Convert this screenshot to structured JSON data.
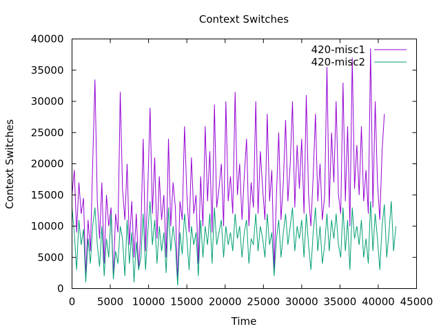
{
  "chart_data": {
    "type": "line",
    "title": "Context Switches",
    "xlabel": "Time",
    "ylabel": "Context Switches",
    "xlim": [
      0,
      45000
    ],
    "ylim": [
      0,
      40000
    ],
    "x_ticks": [
      "0",
      "5000",
      "10000",
      "15000",
      "20000",
      "25000",
      "30000",
      "35000",
      "40000",
      "45000"
    ],
    "y_ticks": [
      "0",
      "5000",
      "10000",
      "15000",
      "20000",
      "25000",
      "30000",
      "35000",
      "40000"
    ],
    "grid": false,
    "legend_position": "top-right",
    "series": [
      {
        "name": "420-misc1",
        "color": "#9400d3",
        "x": [
          0,
          300,
          600,
          900,
          1200,
          1500,
          1800,
          2100,
          2400,
          2700,
          3000,
          3300,
          3600,
          3900,
          4200,
          4500,
          4800,
          5100,
          5400,
          5700,
          6000,
          6300,
          6600,
          6900,
          7200,
          7500,
          7800,
          8100,
          8400,
          8700,
          9000,
          9300,
          9600,
          9900,
          10200,
          10500,
          10800,
          11100,
          11400,
          11700,
          12000,
          12300,
          12600,
          12900,
          13200,
          13500,
          13800,
          14100,
          14400,
          14700,
          15000,
          15300,
          15600,
          15900,
          16200,
          16500,
          16800,
          17100,
          17400,
          17700,
          18000,
          18300,
          18600,
          18900,
          19200,
          19500,
          19800,
          20100,
          20400,
          20700,
          21000,
          21300,
          21600,
          21900,
          22200,
          22500,
          22800,
          23100,
          23400,
          23700,
          24000,
          24300,
          24600,
          24900,
          25200,
          25500,
          25800,
          26100,
          26400,
          26700,
          27000,
          27300,
          27600,
          27900,
          28200,
          28500,
          28800,
          29100,
          29400,
          29700,
          30000,
          30300,
          30600,
          30900,
          31200,
          31500,
          31800,
          32100,
          32400,
          32700,
          33000,
          33300,
          33600,
          33900,
          34200,
          34500,
          34800,
          35100,
          35400,
          35700,
          36000,
          36300,
          36600,
          36900,
          37200,
          37500,
          37800,
          38100,
          38400,
          38700,
          39000,
          39300,
          39600,
          39900,
          40200,
          40500,
          40800
        ],
        "y": [
          15000,
          19000,
          9000,
          17000,
          12000,
          14500,
          2000,
          11000,
          6000,
          20000,
          33500,
          14000,
          8000,
          17000,
          4000,
          15000,
          10000,
          13000,
          2000,
          12000,
          9000,
          31500,
          16000,
          11000,
          20000,
          7000,
          14000,
          5000,
          12000,
          3000,
          9500,
          24000,
          6000,
          16000,
          29000,
          12000,
          21000,
          8000,
          18000,
          11000,
          15000,
          5000,
          24000,
          10000,
          17000,
          13000,
          1000,
          14000,
          11000,
          26000,
          15000,
          9000,
          21000,
          12000,
          15000,
          4000,
          18000,
          10000,
          26000,
          14000,
          22000,
          9000,
          29500,
          13000,
          16000,
          20000,
          10000,
          30000,
          14000,
          18000,
          12000,
          31500,
          15000,
          20000,
          11000,
          18000,
          24000,
          10000,
          17000,
          13000,
          30000,
          12000,
          22000,
          16000,
          11000,
          28000,
          14000,
          19000,
          3000,
          15000,
          25000,
          11000,
          17000,
          27000,
          14000,
          20000,
          30000,
          13000,
          23000,
          16000,
          24000,
          12000,
          31000,
          15000,
          10000,
          18000,
          28000,
          14000,
          20000,
          11000,
          15000,
          35500,
          13000,
          25000,
          17000,
          30000,
          15000,
          12000,
          33000,
          14000,
          26000,
          10000,
          37000,
          16000,
          23000,
          15000,
          26000,
          14000,
          19000,
          12000,
          38500,
          13000,
          30000,
          17000,
          11000,
          22000,
          28000
        ]
      },
      {
        "name": "420-misc2",
        "color": "#009e73",
        "x": [
          0,
          300,
          600,
          900,
          1200,
          1500,
          1800,
          2100,
          2400,
          2700,
          3000,
          3300,
          3600,
          3900,
          4200,
          4500,
          4800,
          5100,
          5400,
          5700,
          6000,
          6300,
          6600,
          6900,
          7200,
          7500,
          7800,
          8100,
          8400,
          8700,
          9000,
          9300,
          9600,
          9900,
          10200,
          10500,
          10800,
          11100,
          11400,
          11700,
          12000,
          12300,
          12600,
          12900,
          13200,
          13500,
          13800,
          14100,
          14400,
          14700,
          15000,
          15300,
          15600,
          15900,
          16200,
          16500,
          16800,
          17100,
          17400,
          17700,
          18000,
          18300,
          18600,
          18900,
          19200,
          19500,
          19800,
          20100,
          20400,
          20700,
          21000,
          21300,
          21600,
          21900,
          22200,
          22500,
          22800,
          23100,
          23400,
          23700,
          24000,
          24300,
          24600,
          24900,
          25200,
          25500,
          25800,
          26100,
          26400,
          26700,
          27000,
          27300,
          27600,
          27900,
          28200,
          28500,
          28800,
          29100,
          29400,
          29700,
          30000,
          30300,
          30600,
          30900,
          31200,
          31500,
          31800,
          32100,
          32400,
          32700,
          33000,
          33300,
          33600,
          33900,
          34200,
          34500,
          34800,
          35100,
          35400,
          35700,
          36000,
          36300,
          36600,
          36900,
          37200,
          37500,
          37800,
          38100,
          38400,
          38700,
          39000,
          39300,
          39600,
          39900,
          40200,
          40500,
          40800,
          41100,
          41400,
          41700,
          42000,
          42300
        ],
        "y": [
          13000,
          9000,
          3000,
          11000,
          7000,
          9500,
          1000,
          8000,
          4000,
          10000,
          13000,
          7000,
          3500,
          10000,
          2000,
          8000,
          5000,
          12000,
          1500,
          6000,
          4000,
          10000,
          8000,
          2000,
          11000,
          4000,
          9000,
          1000,
          7500,
          3000,
          5000,
          12000,
          3000,
          9000,
          14000,
          7000,
          11000,
          4000,
          10000,
          6000,
          9000,
          2500,
          13000,
          6000,
          10000,
          7000,
          500,
          9000,
          5500,
          12000,
          8000,
          3000,
          10000,
          7000,
          9000,
          2000,
          11000,
          5000,
          10000,
          7000,
          12000,
          4000,
          13000,
          7000,
          9000,
          11000,
          5000,
          10000,
          7000,
          9000,
          6000,
          12000,
          8000,
          10000,
          5000,
          9000,
          11000,
          4000,
          8000,
          7000,
          12000,
          6000,
          10000,
          8000,
          5000,
          12000,
          7000,
          9000,
          2000,
          8000,
          11000,
          5000,
          9000,
          12000,
          7000,
          10000,
          13000,
          6000,
          10000,
          8000,
          11000,
          5000,
          12000,
          7000,
          3000,
          9000,
          13000,
          6000,
          10000,
          4000,
          7000,
          12000,
          6000,
          11000,
          8000,
          12000,
          7000,
          5000,
          13000,
          6000,
          11000,
          3000,
          13000,
          8000,
          10000,
          7000,
          11000,
          5000,
          8000,
          4000,
          14000,
          6000,
          12000,
          8000,
          3000,
          10000,
          13500,
          5000,
          9000,
          14000,
          6000,
          10000
        ]
      }
    ]
  }
}
